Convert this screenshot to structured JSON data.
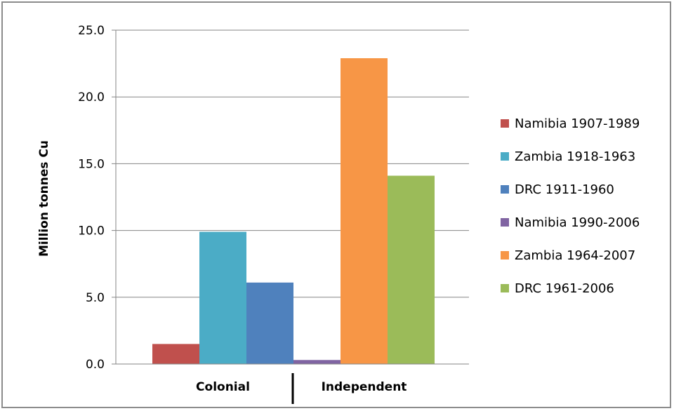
{
  "chart_data": {
    "type": "bar",
    "title": "",
    "xlabel": "",
    "ylabel": "Million tonnes Cu",
    "ylim": [
      0,
      25
    ],
    "yticks": [
      "0.0",
      "5.0",
      "10.0",
      "15.0",
      "20.0",
      "25.0"
    ],
    "categories": [
      "Colonial",
      "Independent"
    ],
    "grid": true,
    "legend_position": "right",
    "series": [
      {
        "name": "Namibia 1907-1989",
        "category": "Colonial",
        "value": 1.5,
        "color": "#c0504d"
      },
      {
        "name": "Zambia 1918-1963",
        "category": "Colonial",
        "value": 9.9,
        "color": "#4bacc6"
      },
      {
        "name": "DRC 1911-1960",
        "category": "Colonial",
        "value": 6.1,
        "color": "#4f81bd"
      },
      {
        "name": "Namibia 1990-2006",
        "category": "Independent",
        "value": 0.3,
        "color": "#8064a2"
      },
      {
        "name": "Zambia 1964-2007",
        "category": "Independent",
        "value": 22.9,
        "color": "#f79646"
      },
      {
        "name": "DRC 1961-2006",
        "category": "Independent",
        "value": 14.1,
        "color": "#9bbb59"
      }
    ]
  }
}
